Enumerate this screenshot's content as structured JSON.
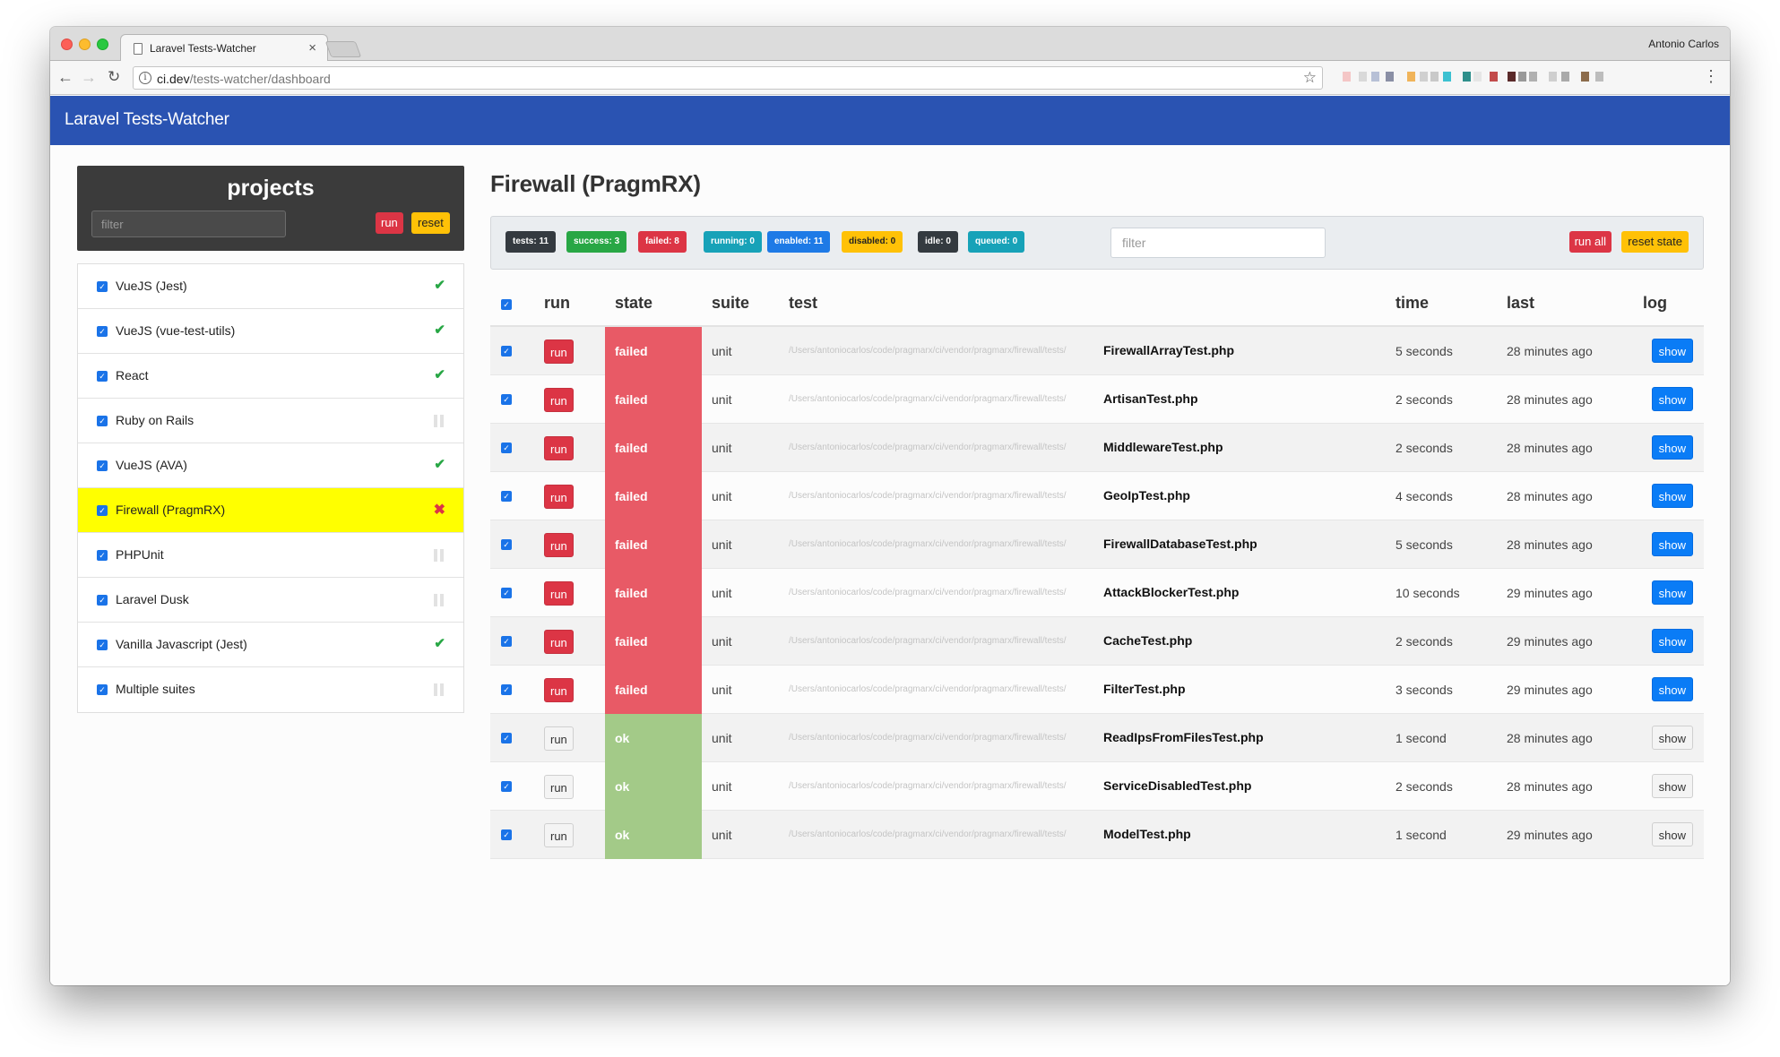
{
  "browser": {
    "tab_title": "Laravel Tests-Watcher",
    "tab_close": "×",
    "profile_name": "Antonio Carlos",
    "url_host": "ci.dev",
    "url_path": "/tests-watcher/dashboard",
    "back_glyph": "←",
    "forward_glyph": "→",
    "reload_glyph": "↻",
    "star_glyph": "☆",
    "menu_glyph": "⋮",
    "info_glyph": "i"
  },
  "app": {
    "brand": "Laravel Tests-Watcher"
  },
  "sidebar": {
    "title": "projects",
    "filter_placeholder": "filter",
    "run_label": "run",
    "reset_label": "reset",
    "items": [
      {
        "name": "VueJS (Jest)",
        "status": "ok"
      },
      {
        "name": "VueJS (vue-test-utils)",
        "status": "ok"
      },
      {
        "name": "React",
        "status": "ok"
      },
      {
        "name": "Ruby on Rails",
        "status": "idle"
      },
      {
        "name": "VueJS (AVA)",
        "status": "ok"
      },
      {
        "name": "Firewall (PragmRX)",
        "status": "failed",
        "selected": true
      },
      {
        "name": "PHPUnit",
        "status": "idle"
      },
      {
        "name": "Laravel Dusk",
        "status": "idle"
      },
      {
        "name": "Vanilla Javascript (Jest)",
        "status": "ok"
      },
      {
        "name": "Multiple suites",
        "status": "idle"
      }
    ]
  },
  "main": {
    "title": "Firewall (PragmRX)",
    "badges": [
      {
        "label": "tests: 11",
        "color": "dark"
      },
      {
        "label": "success: 3",
        "color": "green"
      },
      {
        "label": "failed: 8",
        "color": "red"
      },
      {
        "label": "running: 0",
        "color": "teal"
      },
      {
        "label": "enabled: 11",
        "color": "blue"
      },
      {
        "label": "disabled: 0",
        "color": "yellow"
      },
      {
        "label": "idle: 0",
        "color": "dark"
      },
      {
        "label": "queued: 0",
        "color": "teal"
      }
    ],
    "filter_placeholder": "filter",
    "run_all_label": "run all",
    "reset_state_label": "reset state",
    "columns": {
      "run": "run",
      "state": "state",
      "suite": "suite",
      "test": "test",
      "time": "time",
      "last": "last",
      "log": "log"
    },
    "path_prefix": "/Users/antoniocarlos/code/pragmarx/ci/vendor/pragmarx/firewall/tests/",
    "rows": [
      {
        "run": "run",
        "state": "failed",
        "suite": "unit",
        "file": "FirewallArrayTest.php",
        "time": "5 seconds",
        "last": "28 minutes ago",
        "log": "show"
      },
      {
        "run": "run",
        "state": "failed",
        "suite": "unit",
        "file": "ArtisanTest.php",
        "time": "2 seconds",
        "last": "28 minutes ago",
        "log": "show"
      },
      {
        "run": "run",
        "state": "failed",
        "suite": "unit",
        "file": "MiddlewareTest.php",
        "time": "2 seconds",
        "last": "28 minutes ago",
        "log": "show"
      },
      {
        "run": "run",
        "state": "failed",
        "suite": "unit",
        "file": "GeoIpTest.php",
        "time": "4 seconds",
        "last": "28 minutes ago",
        "log": "show"
      },
      {
        "run": "run",
        "state": "failed",
        "suite": "unit",
        "file": "FirewallDatabaseTest.php",
        "time": "5 seconds",
        "last": "28 minutes ago",
        "log": "show"
      },
      {
        "run": "run",
        "state": "failed",
        "suite": "unit",
        "file": "AttackBlockerTest.php",
        "time": "10 seconds",
        "last": "29 minutes ago",
        "log": "show"
      },
      {
        "run": "run",
        "state": "failed",
        "suite": "unit",
        "file": "CacheTest.php",
        "time": "2 seconds",
        "last": "29 minutes ago",
        "log": "show"
      },
      {
        "run": "run",
        "state": "failed",
        "suite": "unit",
        "file": "FilterTest.php",
        "time": "3 seconds",
        "last": "29 minutes ago",
        "log": "show"
      },
      {
        "run": "run",
        "state": "ok",
        "suite": "unit",
        "file": "ReadIpsFromFilesTest.php",
        "time": "1 second",
        "last": "28 minutes ago",
        "log": "show"
      },
      {
        "run": "run",
        "state": "ok",
        "suite": "unit",
        "file": "ServiceDisabledTest.php",
        "time": "2 seconds",
        "last": "28 minutes ago",
        "log": "show"
      },
      {
        "run": "run",
        "state": "ok",
        "suite": "unit",
        "file": "ModelTest.php",
        "time": "1 second",
        "last": "29 minutes ago",
        "log": "show"
      }
    ]
  },
  "colors": {
    "navbar": "#2a53b2",
    "failed": "#e85a66",
    "ok": "#a3ca88",
    "selected": "#ffff00",
    "show_blue": "#0a7cf6"
  },
  "extension_swatches": [
    "#f4c6c6",
    "#d9d9d9",
    "#b7c0d6",
    "#8a8fa5",
    "#f0b45a",
    "#d0d0d0",
    "#c9c9c9",
    "#3cc1d1",
    "#2f8f8b",
    "#e6e6e6",
    "#c24b4b",
    "#5a2a2a",
    "#999999",
    "#b0b0b0",
    "#cfcfcf",
    "#aaaaaa",
    "#8c6c4c",
    "#bdbdbd"
  ]
}
